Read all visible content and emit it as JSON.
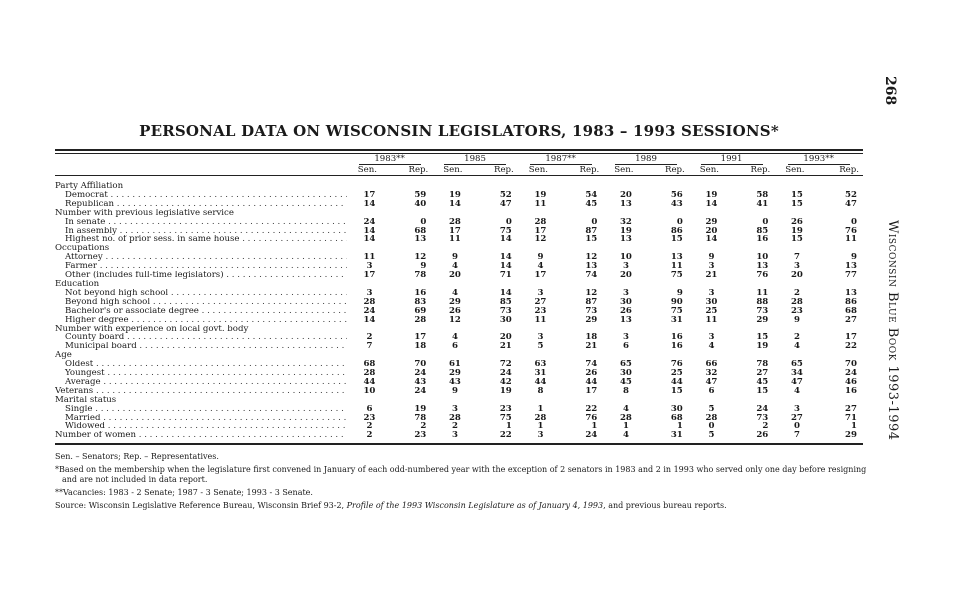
{
  "page_number": "268",
  "running_head": "Wisconsin Blue Book 1993-1994",
  "title": "PERSONAL DATA ON WISCONSIN LEGISLATORS, 1983 – 1993 SESSIONS*",
  "years": [
    "1983**",
    "1985",
    "1987**",
    "1989",
    "1991",
    "1993**"
  ],
  "sub_headers": [
    "Sen.",
    "Rep."
  ],
  "rows": [
    {
      "label": "Party Affiliation",
      "indent": false,
      "values": null
    },
    {
      "label": "Democrat",
      "indent": true,
      "values": [
        "17",
        "59",
        "19",
        "52",
        "19",
        "54",
        "20",
        "56",
        "19",
        "58",
        "15",
        "52"
      ]
    },
    {
      "label": "Republican",
      "indent": true,
      "values": [
        "14",
        "40",
        "14",
        "47",
        "11",
        "45",
        "13",
        "43",
        "14",
        "41",
        "15",
        "47"
      ]
    },
    {
      "label": "Number with previous legislative service",
      "indent": false,
      "values": null
    },
    {
      "label": "In senate",
      "indent": true,
      "values": [
        "24",
        "0",
        "28",
        "0",
        "28",
        "0",
        "32",
        "0",
        "29",
        "0",
        "26",
        "0"
      ]
    },
    {
      "label": "In assembly",
      "indent": true,
      "values": [
        "14",
        "68",
        "17",
        "75",
        "17",
        "87",
        "19",
        "86",
        "20",
        "85",
        "19",
        "76"
      ]
    },
    {
      "label": "Highest no. of prior sess. in same house",
      "indent": true,
      "values": [
        "14",
        "13",
        "11",
        "14",
        "12",
        "15",
        "13",
        "15",
        "14",
        "16",
        "15",
        "11"
      ]
    },
    {
      "label": "Occupations",
      "indent": false,
      "values": null
    },
    {
      "label": "Attorney",
      "indent": true,
      "values": [
        "11",
        "12",
        "9",
        "14",
        "9",
        "12",
        "10",
        "13",
        "9",
        "10",
        "7",
        "9"
      ]
    },
    {
      "label": "Farmer",
      "indent": true,
      "values": [
        "3",
        "9",
        "4",
        "14",
        "4",
        "13",
        "3",
        "11",
        "3",
        "13",
        "3",
        "13"
      ]
    },
    {
      "label": "Other (includes full-time legislators)",
      "indent": true,
      "values": [
        "17",
        "78",
        "20",
        "71",
        "17",
        "74",
        "20",
        "75",
        "21",
        "76",
        "20",
        "77"
      ]
    },
    {
      "label": "Education",
      "indent": false,
      "values": null
    },
    {
      "label": "Not beyond high school",
      "indent": true,
      "values": [
        "3",
        "16",
        "4",
        "14",
        "3",
        "12",
        "3",
        "9",
        "3",
        "11",
        "2",
        "13"
      ]
    },
    {
      "label": "Beyond high school",
      "indent": true,
      "values": [
        "28",
        "83",
        "29",
        "85",
        "27",
        "87",
        "30",
        "90",
        "30",
        "88",
        "28",
        "86"
      ]
    },
    {
      "label": "Bachelor's or associate degree",
      "indent": true,
      "values": [
        "24",
        "69",
        "26",
        "73",
        "23",
        "73",
        "26",
        "75",
        "25",
        "73",
        "23",
        "68"
      ]
    },
    {
      "label": "Higher degree",
      "indent": true,
      "values": [
        "14",
        "28",
        "12",
        "30",
        "11",
        "29",
        "13",
        "31",
        "11",
        "29",
        "9",
        "27"
      ]
    },
    {
      "label": "Number with experience on local govt. body",
      "indent": false,
      "values": null
    },
    {
      "label": "County board",
      "indent": true,
      "values": [
        "2",
        "17",
        "4",
        "20",
        "3",
        "18",
        "3",
        "16",
        "3",
        "15",
        "2",
        "17"
      ]
    },
    {
      "label": "Municipal board",
      "indent": true,
      "values": [
        "7",
        "18",
        "6",
        "21",
        "5",
        "21",
        "6",
        "16",
        "4",
        "19",
        "4",
        "22"
      ]
    },
    {
      "label": "Age",
      "indent": false,
      "values": null
    },
    {
      "label": "Oldest",
      "indent": true,
      "values": [
        "68",
        "70",
        "61",
        "72",
        "63",
        "74",
        "65",
        "76",
        "66",
        "78",
        "65",
        "70"
      ]
    },
    {
      "label": "Youngest",
      "indent": true,
      "values": [
        "28",
        "24",
        "29",
        "24",
        "31",
        "26",
        "30",
        "25",
        "32",
        "27",
        "34",
        "24"
      ]
    },
    {
      "label": "Average",
      "indent": true,
      "values": [
        "44",
        "43",
        "43",
        "42",
        "44",
        "44",
        "45",
        "44",
        "47",
        "45",
        "47",
        "46"
      ]
    },
    {
      "label": "Veterans",
      "indent": false,
      "values": [
        "10",
        "24",
        "9",
        "19",
        "8",
        "17",
        "8",
        "15",
        "6",
        "15",
        "4",
        "16"
      ]
    },
    {
      "label": "Marital status",
      "indent": false,
      "values": null
    },
    {
      "label": "Single",
      "indent": true,
      "values": [
        "6",
        "19",
        "3",
        "23",
        "1",
        "22",
        "4",
        "30",
        "5",
        "24",
        "3",
        "27"
      ]
    },
    {
      "label": "Married",
      "indent": true,
      "values": [
        "23",
        "78",
        "28",
        "75",
        "28",
        "76",
        "28",
        "68",
        "28",
        "73",
        "27",
        "71"
      ]
    },
    {
      "label": "Widowed",
      "indent": true,
      "values": [
        "2",
        "2",
        "2",
        "1",
        "1",
        "1",
        "1",
        "1",
        "0",
        "2",
        "0",
        "1"
      ]
    },
    {
      "label": "Number of women",
      "indent": false,
      "values": [
        "2",
        "23",
        "3",
        "22",
        "3",
        "24",
        "4",
        "31",
        "5",
        "26",
        "7",
        "29"
      ]
    }
  ],
  "notes": {
    "abbrev": "Sen. – Senators; Rep. – Representatives.",
    "star": "*Based on the membership when the legislature first convened in January of each odd-numbered year with the exception of 2 senators in 1983 and 2 in 1993 who served only one day before resigning and are not included in data report.",
    "vacancies": "**Vacancies: 1983 - 2 Senate; 1987 - 3 Senate; 1993 - 3 Senate.",
    "source_prefix": "Source: Wisconsin Legislative Reference Bureau, Wisconsin Brief 93-2, ",
    "source_title": "Profile of the 1993 Wisconsin Legislature as of January 4, 1993",
    "source_suffix": ", and previous bureau reports."
  }
}
